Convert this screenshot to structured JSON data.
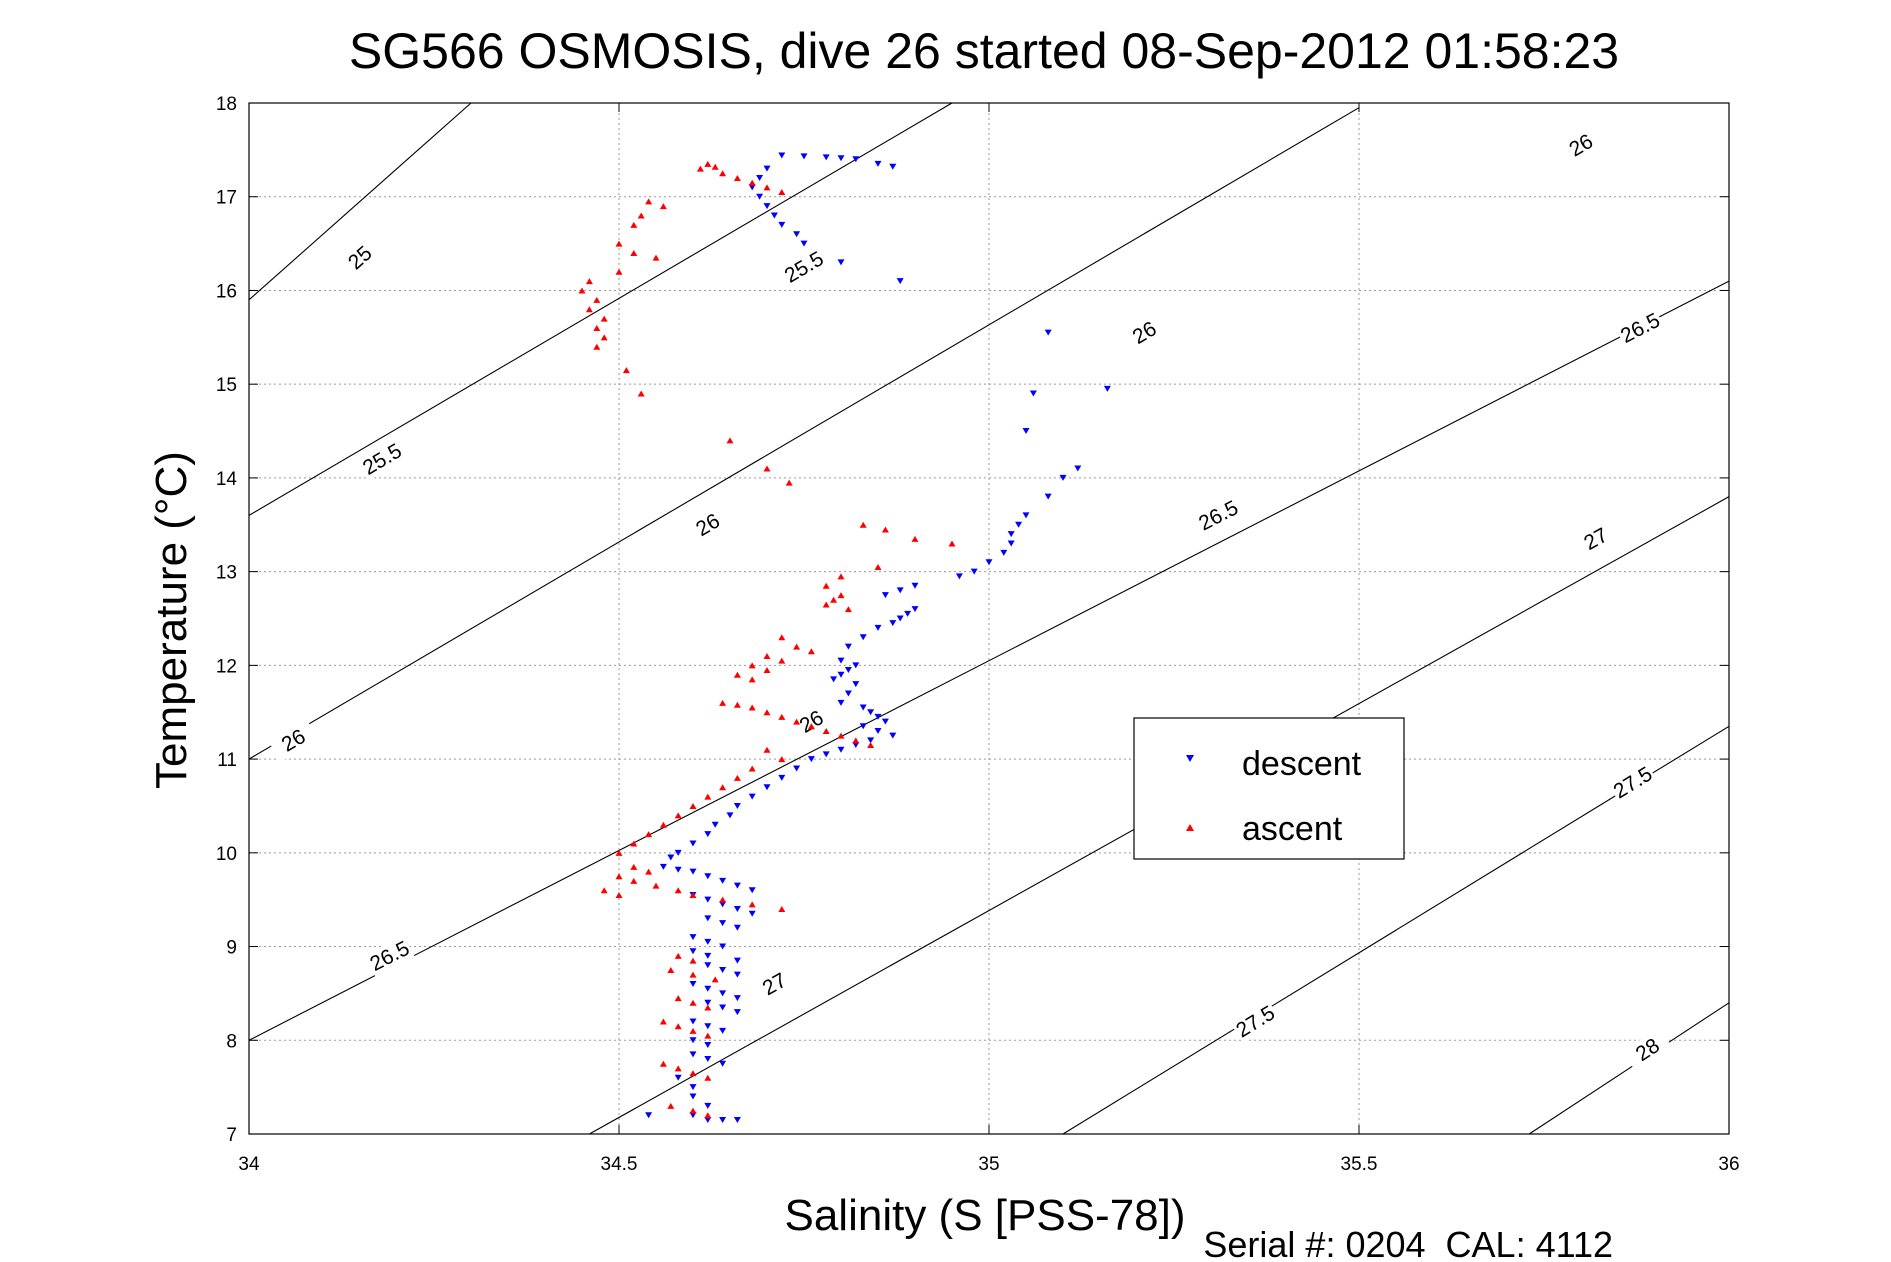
{
  "chart_data": {
    "type": "scatter",
    "title": "SG566 OSMOSIS, dive 26 started 08-Sep-2012 01:58:23",
    "xlabel": "Salinity (S [PSS-78])",
    "ylabel": "Temperature (°C)",
    "xlim": [
      34,
      36
    ],
    "ylim": [
      7,
      18
    ],
    "xticks": [
      34,
      34.5,
      35,
      35.5,
      36
    ],
    "xtick_labels": [
      "34",
      "34.5",
      "35",
      "35.5",
      "36"
    ],
    "yticks": [
      7,
      8,
      9,
      10,
      11,
      12,
      13,
      14,
      15,
      16,
      17,
      18
    ],
    "ytick_labels": [
      "7",
      "8",
      "9",
      "10",
      "11",
      "12",
      "13",
      "14",
      "15",
      "16",
      "17",
      "18"
    ],
    "grid": true,
    "legend_position": "right-center",
    "footer": "Serial #: 0204  CAL: 4112",
    "series": [
      {
        "name": "descent",
        "color": "#0000ff",
        "marker": "triangle-down",
        "points": [
          [
            34.72,
            17.44
          ],
          [
            34.75,
            17.43
          ],
          [
            34.78,
            17.42
          ],
          [
            34.8,
            17.41
          ],
          [
            34.82,
            17.4
          ],
          [
            34.85,
            17.35
          ],
          [
            34.87,
            17.32
          ],
          [
            34.7,
            17.3
          ],
          [
            34.69,
            17.2
          ],
          [
            34.68,
            17.1
          ],
          [
            34.69,
            17.0
          ],
          [
            34.7,
            16.9
          ],
          [
            34.71,
            16.8
          ],
          [
            34.72,
            16.7
          ],
          [
            34.74,
            16.6
          ],
          [
            34.75,
            16.5
          ],
          [
            34.8,
            16.3
          ],
          [
            34.88,
            16.1
          ],
          [
            35.08,
            15.55
          ],
          [
            35.16,
            14.95
          ],
          [
            35.06,
            14.9
          ],
          [
            35.05,
            14.5
          ],
          [
            35.12,
            14.1
          ],
          [
            35.1,
            14.0
          ],
          [
            35.08,
            13.8
          ],
          [
            35.05,
            13.6
          ],
          [
            35.04,
            13.5
          ],
          [
            35.03,
            13.4
          ],
          [
            35.03,
            13.3
          ],
          [
            35.02,
            13.2
          ],
          [
            35.0,
            13.1
          ],
          [
            34.98,
            13.0
          ],
          [
            34.96,
            12.95
          ],
          [
            34.9,
            12.85
          ],
          [
            34.88,
            12.8
          ],
          [
            34.86,
            12.75
          ],
          [
            34.9,
            12.6
          ],
          [
            34.89,
            12.55
          ],
          [
            34.88,
            12.5
          ],
          [
            34.87,
            12.45
          ],
          [
            34.85,
            12.4
          ],
          [
            34.83,
            12.3
          ],
          [
            34.81,
            12.2
          ],
          [
            34.8,
            12.05
          ],
          [
            34.82,
            12.0
          ],
          [
            34.81,
            11.95
          ],
          [
            34.8,
            11.9
          ],
          [
            34.79,
            11.85
          ],
          [
            34.82,
            11.8
          ],
          [
            34.81,
            11.7
          ],
          [
            34.8,
            11.6
          ],
          [
            34.83,
            11.55
          ],
          [
            34.84,
            11.5
          ],
          [
            34.85,
            11.45
          ],
          [
            34.86,
            11.4
          ],
          [
            34.83,
            11.35
          ],
          [
            34.85,
            11.3
          ],
          [
            34.87,
            11.25
          ],
          [
            34.84,
            11.2
          ],
          [
            34.82,
            11.15
          ],
          [
            34.8,
            11.1
          ],
          [
            34.78,
            11.05
          ],
          [
            34.76,
            11.0
          ],
          [
            34.74,
            10.9
          ],
          [
            34.72,
            10.8
          ],
          [
            34.7,
            10.7
          ],
          [
            34.68,
            10.6
          ],
          [
            34.66,
            10.5
          ],
          [
            34.65,
            10.4
          ],
          [
            34.63,
            10.3
          ],
          [
            34.62,
            10.2
          ],
          [
            34.6,
            10.1
          ],
          [
            34.58,
            10.0
          ],
          [
            34.57,
            9.95
          ],
          [
            34.56,
            9.85
          ],
          [
            34.58,
            9.82
          ],
          [
            34.6,
            9.8
          ],
          [
            34.62,
            9.75
          ],
          [
            34.64,
            9.7
          ],
          [
            34.66,
            9.65
          ],
          [
            34.68,
            9.6
          ],
          [
            34.6,
            9.55
          ],
          [
            34.62,
            9.5
          ],
          [
            34.64,
            9.45
          ],
          [
            34.66,
            9.4
          ],
          [
            34.68,
            9.35
          ],
          [
            34.62,
            9.3
          ],
          [
            34.64,
            9.25
          ],
          [
            34.66,
            9.2
          ],
          [
            34.6,
            9.1
          ],
          [
            34.62,
            9.05
          ],
          [
            34.64,
            9.0
          ],
          [
            34.6,
            8.95
          ],
          [
            34.62,
            8.9
          ],
          [
            34.66,
            8.85
          ],
          [
            34.62,
            8.8
          ],
          [
            34.64,
            8.75
          ],
          [
            34.66,
            8.7
          ],
          [
            34.6,
            8.6
          ],
          [
            34.62,
            8.55
          ],
          [
            34.64,
            8.5
          ],
          [
            34.66,
            8.45
          ],
          [
            34.62,
            8.4
          ],
          [
            34.64,
            8.35
          ],
          [
            34.66,
            8.3
          ],
          [
            34.6,
            8.2
          ],
          [
            34.62,
            8.15
          ],
          [
            34.64,
            8.1
          ],
          [
            34.6,
            8.0
          ],
          [
            34.62,
            7.95
          ],
          [
            34.6,
            7.85
          ],
          [
            34.62,
            7.8
          ],
          [
            34.64,
            7.75
          ],
          [
            34.58,
            7.6
          ],
          [
            34.6,
            7.5
          ],
          [
            34.6,
            7.4
          ],
          [
            34.62,
            7.3
          ],
          [
            34.6,
            7.2
          ],
          [
            34.62,
            7.15
          ],
          [
            34.64,
            7.15
          ],
          [
            34.66,
            7.15
          ],
          [
            34.54,
            7.2
          ]
        ]
      },
      {
        "name": "ascent",
        "color": "#ff0000",
        "marker": "triangle-up",
        "points": [
          [
            34.62,
            17.35
          ],
          [
            34.63,
            17.32
          ],
          [
            34.61,
            17.3
          ],
          [
            34.64,
            17.25
          ],
          [
            34.66,
            17.2
          ],
          [
            34.68,
            17.15
          ],
          [
            34.7,
            17.1
          ],
          [
            34.72,
            17.05
          ],
          [
            34.54,
            16.95
          ],
          [
            34.56,
            16.9
          ],
          [
            34.53,
            16.8
          ],
          [
            34.52,
            16.7
          ],
          [
            34.5,
            16.5
          ],
          [
            34.52,
            16.4
          ],
          [
            34.55,
            16.35
          ],
          [
            34.5,
            16.2
          ],
          [
            34.46,
            16.1
          ],
          [
            34.45,
            16.0
          ],
          [
            34.47,
            15.9
          ],
          [
            34.46,
            15.8
          ],
          [
            34.48,
            15.7
          ],
          [
            34.47,
            15.6
          ],
          [
            34.48,
            15.5
          ],
          [
            34.47,
            15.4
          ],
          [
            34.51,
            15.15
          ],
          [
            34.53,
            14.9
          ],
          [
            34.65,
            14.4
          ],
          [
            34.7,
            14.1
          ],
          [
            34.73,
            13.95
          ],
          [
            34.83,
            13.5
          ],
          [
            34.86,
            13.45
          ],
          [
            34.9,
            13.35
          ],
          [
            34.95,
            13.3
          ],
          [
            34.85,
            13.05
          ],
          [
            34.8,
            12.95
          ],
          [
            34.78,
            12.85
          ],
          [
            34.8,
            12.75
          ],
          [
            34.79,
            12.7
          ],
          [
            34.78,
            12.65
          ],
          [
            34.81,
            12.6
          ],
          [
            34.72,
            12.3
          ],
          [
            34.74,
            12.2
          ],
          [
            34.76,
            12.15
          ],
          [
            34.7,
            12.1
          ],
          [
            34.72,
            12.05
          ],
          [
            34.68,
            12.0
          ],
          [
            34.7,
            11.95
          ],
          [
            34.66,
            11.9
          ],
          [
            34.68,
            11.85
          ],
          [
            34.64,
            11.6
          ],
          [
            34.66,
            11.58
          ],
          [
            34.68,
            11.55
          ],
          [
            34.7,
            11.5
          ],
          [
            34.72,
            11.45
          ],
          [
            34.74,
            11.4
          ],
          [
            34.76,
            11.35
          ],
          [
            34.78,
            11.3
          ],
          [
            34.8,
            11.25
          ],
          [
            34.82,
            11.2
          ],
          [
            34.84,
            11.15
          ],
          [
            34.7,
            11.1
          ],
          [
            34.72,
            11.0
          ],
          [
            34.68,
            10.9
          ],
          [
            34.66,
            10.8
          ],
          [
            34.64,
            10.7
          ],
          [
            34.62,
            10.6
          ],
          [
            34.6,
            10.5
          ],
          [
            34.58,
            10.4
          ],
          [
            34.56,
            10.3
          ],
          [
            34.54,
            10.2
          ],
          [
            34.52,
            10.1
          ],
          [
            34.5,
            10.0
          ],
          [
            34.52,
            9.85
          ],
          [
            34.54,
            9.8
          ],
          [
            34.5,
            9.75
          ],
          [
            34.52,
            9.7
          ],
          [
            34.55,
            9.65
          ],
          [
            34.58,
            9.6
          ],
          [
            34.6,
            9.55
          ],
          [
            34.64,
            9.5
          ],
          [
            34.68,
            9.45
          ],
          [
            34.72,
            9.4
          ],
          [
            34.48,
            9.6
          ],
          [
            34.5,
            9.55
          ],
          [
            34.58,
            8.9
          ],
          [
            34.6,
            8.85
          ],
          [
            34.57,
            8.75
          ],
          [
            34.6,
            8.7
          ],
          [
            34.63,
            8.65
          ],
          [
            34.58,
            8.45
          ],
          [
            34.6,
            8.4
          ],
          [
            34.62,
            8.35
          ],
          [
            34.56,
            8.2
          ],
          [
            34.58,
            8.15
          ],
          [
            34.6,
            8.1
          ],
          [
            34.62,
            8.05
          ],
          [
            34.56,
            7.75
          ],
          [
            34.58,
            7.7
          ],
          [
            34.6,
            7.65
          ],
          [
            34.62,
            7.6
          ],
          [
            34.57,
            7.3
          ],
          [
            34.6,
            7.25
          ],
          [
            34.62,
            7.2
          ]
        ]
      }
    ],
    "contours": [
      {
        "sigma": "25",
        "labels": [
          "25"
        ]
      },
      {
        "sigma": "25.5",
        "labels": [
          "25.5",
          "25.5"
        ]
      },
      {
        "sigma": "26",
        "labels": [
          "26",
          "26",
          "26",
          "26",
          "26"
        ]
      },
      {
        "sigma": "26.5",
        "labels": [
          "26.5",
          "26.5",
          "26.5",
          "26.5"
        ]
      },
      {
        "sigma": "27",
        "labels": [
          "27",
          "27"
        ]
      },
      {
        "sigma": "27.5",
        "labels": [
          "27.5",
          "27.5"
        ]
      },
      {
        "sigma": "28",
        "labels": [
          "28"
        ]
      }
    ]
  }
}
